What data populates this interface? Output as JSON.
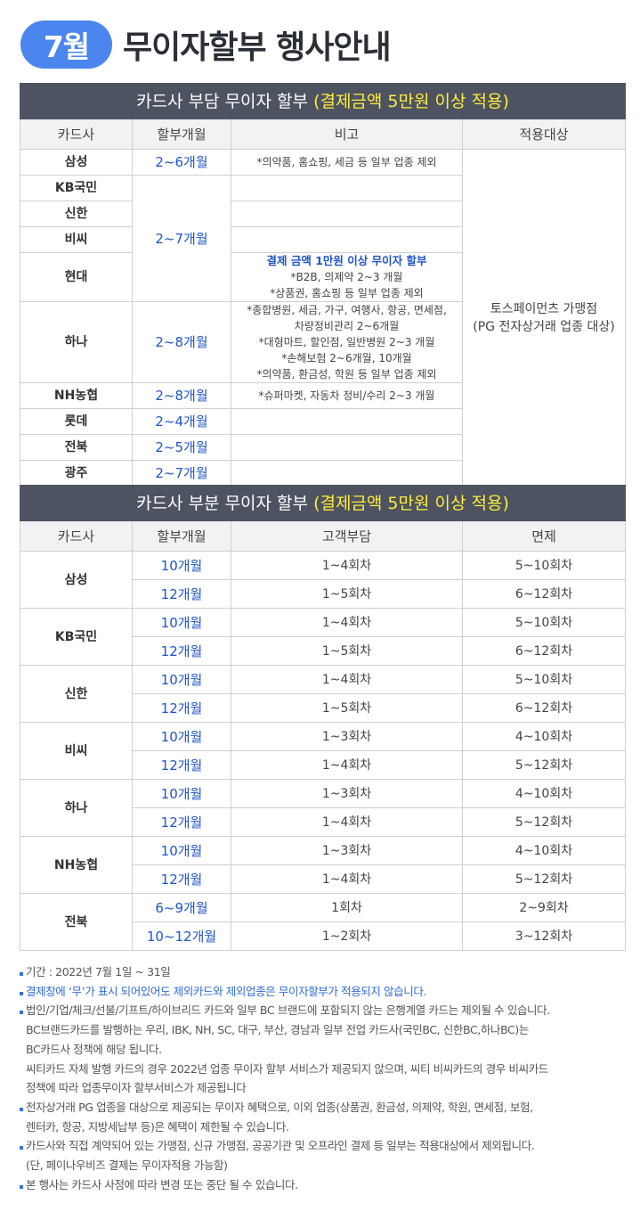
{
  "header": {
    "month_badge": "7월",
    "title": "무이자할부 행사안내"
  },
  "table1": {
    "section_title": "카드사 부담 무이자 할부",
    "section_highlight": "(결제금액 5만원 이상 적용)",
    "columns": [
      "카드사",
      "할부개월",
      "비고",
      "적용대상"
    ],
    "target": [
      "토스페이먼츠 가맹점",
      "(PG 전자상거래 업종 대상)"
    ],
    "rows": [
      {
        "card": "삼성",
        "months": "2~6개월",
        "note": [
          "*의약품, 홈쇼핑, 세금 등 일부 업종 제외"
        ]
      },
      {
        "card": "KB국민",
        "months": "2~7개월",
        "note": []
      },
      {
        "card": "신한",
        "note": []
      },
      {
        "card": "비씨",
        "note": []
      },
      {
        "card": "현대",
        "note_highlight": "결제 금액 1만원 이상 무이자 할부",
        "note": [
          "*B2B, 의제약 2~3 개월",
          "*상품권, 홈쇼핑 등 일부 업종 제외"
        ]
      },
      {
        "card": "하나",
        "months": "2~8개월",
        "note": [
          "*종합병원, 세금, 가구, 여행사, 항공, 면세점,",
          "차량정비관리 2~6개월",
          "*대형마트, 할인점, 일반병원 2~3 개월",
          "*손해보험 2~6개월, 10개월",
          "*의약품, 환금성, 학원 등 일부 업종 제외"
        ]
      },
      {
        "card": "NH농협",
        "months": "2~8개월",
        "note": [
          "*슈퍼마켓, 자동차 정비/수리 2~3 개월"
        ]
      },
      {
        "card": "롯데",
        "months": "2~4개월",
        "note": []
      },
      {
        "card": "전북",
        "months": "2~5개월",
        "note": []
      },
      {
        "card": "광주",
        "months": "2~7개월",
        "note": []
      }
    ]
  },
  "table2": {
    "section_title": "카드사 부분  무이자 할부",
    "section_highlight": "(결제금액 5만원 이상 적용)",
    "columns": [
      "카드사",
      "할부개월",
      "고객부담",
      "면제"
    ],
    "groups": [
      {
        "card": "삼성",
        "rows": [
          {
            "months": "10개월",
            "customer": "1~4회차",
            "waived": "5~10회차"
          },
          {
            "months": "12개월",
            "customer": "1~5회차",
            "waived": "6~12회차"
          }
        ]
      },
      {
        "card": "KB국민",
        "rows": [
          {
            "months": "10개월",
            "customer": "1~4회차",
            "waived": "5~10회차"
          },
          {
            "months": "12개월",
            "customer": "1~5회차",
            "waived": "6~12회차"
          }
        ]
      },
      {
        "card": "신한",
        "rows": [
          {
            "months": "10개월",
            "customer": "1~4회차",
            "waived": "5~10회차"
          },
          {
            "months": "12개월",
            "customer": "1~5회차",
            "waived": "6~12회차"
          }
        ]
      },
      {
        "card": "비씨",
        "rows": [
          {
            "months": "10개월",
            "customer": "1~3회차",
            "waived": "4~10회차"
          },
          {
            "months": "12개월",
            "customer": "1~4회차",
            "waived": "5~12회차"
          }
        ]
      },
      {
        "card": "하나",
        "rows": [
          {
            "months": "10개월",
            "customer": "1~3회차",
            "waived": "4~10회차"
          },
          {
            "months": "12개월",
            "customer": "1~4회차",
            "waived": "5~12회차"
          }
        ]
      },
      {
        "card": "NH농협",
        "rows": [
          {
            "months": "10개월",
            "customer": "1~3회차",
            "waived": "4~10회차"
          },
          {
            "months": "12개월",
            "customer": "1~4회차",
            "waived": "5~12회차"
          }
        ]
      },
      {
        "card": "전북",
        "rows": [
          {
            "months": "6~9개월",
            "customer": "1회차",
            "waived": "2~9회차"
          },
          {
            "months": "10~12개월",
            "customer": "1~2회차",
            "waived": "3~12회차"
          }
        ]
      }
    ]
  },
  "notes": [
    {
      "bullet": true,
      "blue": false,
      "text": "기간 : 2022년 7월 1일 ~ 31일"
    },
    {
      "bullet": true,
      "blue": true,
      "text": "결제창에 ‘무’가 표시 되어있어도 제외카드와 제외업종은 무이자할부가 적용되지 않습니다."
    },
    {
      "bullet": true,
      "blue": false,
      "text": "법인/기업/체크/선불/기프트/하이브리드 카드와 일부 BC 브랜드에 포함되지 않는 은행계열 카드는 제외될 수 있습니다."
    },
    {
      "bullet": false,
      "blue": false,
      "text": "BC브랜드카드를 발행하는 우리, IBK, NH, SC, 대구, 부산, 경남과 일부 전업 카드사(국민BC, 신한BC,하나BC)는"
    },
    {
      "bullet": false,
      "blue": false,
      "text": "BC카드사 정책에 해당 됩니다."
    },
    {
      "bullet": false,
      "blue": false,
      "text": "씨티카드 자체 발행 카드의 경우 2022년 업종 무이자 할부 서비스가 제공되지 않으며, 씨티 비씨카드의 경우 비씨카드"
    },
    {
      "bullet": false,
      "blue": false,
      "text": "정책에 따라 업종무이자 할부서비스가 제공됩니다"
    },
    {
      "bullet": true,
      "blue": false,
      "text": "전자상거래 PG 업종을 대상으로 제공되는 무이자 혜택으로, 이외 업종(상품권, 환금성, 의제약, 학원, 면세점, 보험,"
    },
    {
      "bullet": false,
      "blue": false,
      "text": "렌터카, 항공, 지방세납부 등)은 혜택이 제한될 수 있습니다."
    },
    {
      "bullet": true,
      "blue": false,
      "text": "카드사와 직접 계약되어 있는 가맹점, 신규 가맹점, 공공기관 및 오프라인 결제 등 일부는 적용대상에서 제외됩니다."
    },
    {
      "bullet": false,
      "blue": false,
      "text": "(단, 페이나우비즈 결제는 무이자적용 가능함)"
    },
    {
      "bullet": true,
      "blue": false,
      "text": "본 행사는 카드사 사정에 따라 변경 또는 중단 될 수 있습니다."
    }
  ]
}
